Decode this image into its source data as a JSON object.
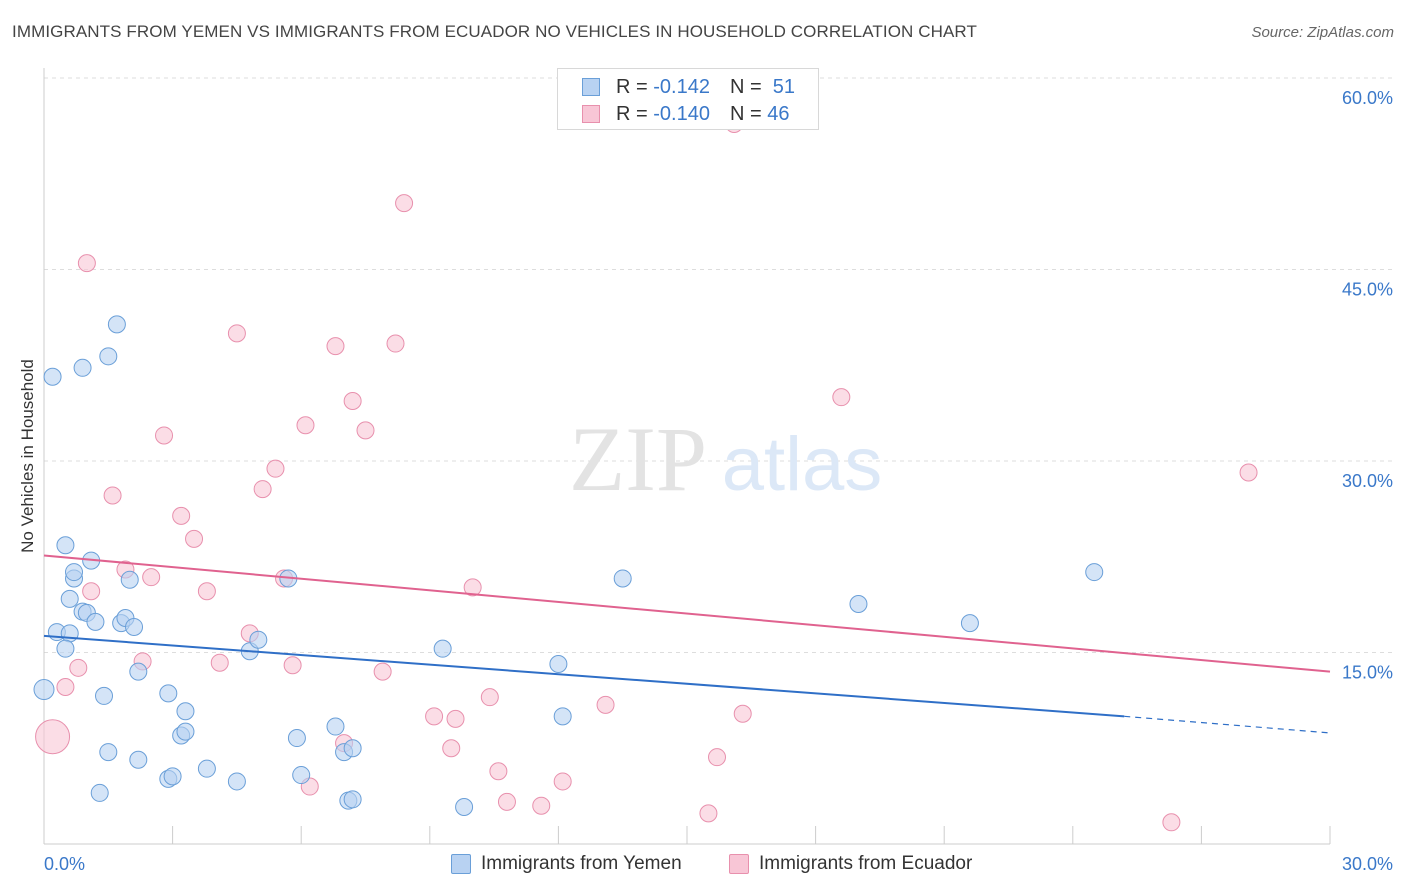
{
  "title": "IMMIGRANTS FROM YEMEN VS IMMIGRANTS FROM ECUADOR NO VEHICLES IN HOUSEHOLD CORRELATION CHART",
  "source": "Source: ZipAtlas.com",
  "watermark": {
    "zip": "ZIP",
    "atlas": "atlas"
  },
  "legend_top": [
    {
      "r_label": "R =",
      "r_value": "-0.142",
      "n_label": "N =",
      "n_value": "51"
    },
    {
      "r_label": "R =",
      "r_value": "-0.140",
      "n_label": "N =",
      "n_value": "46"
    }
  ],
  "colors": {
    "yemen_fill": "#b8d2f2",
    "yemen_stroke": "#6a9fd8",
    "yemen_line": "#2f6fc7",
    "ecuador_fill": "#f8c6d6",
    "ecuador_stroke": "#e890ad",
    "ecuador_line": "#e0628f",
    "tick_label": "#3a78c9",
    "grid": "#dddddd"
  },
  "chart_data": {
    "type": "scatter",
    "title": "IMMIGRANTS FROM YEMEN VS IMMIGRANTS FROM ECUADOR NO VEHICLES IN HOUSEHOLD CORRELATION CHART",
    "xlabel": "",
    "ylabel": "No Vehicles in Household",
    "xlim": [
      0,
      30
    ],
    "ylim": [
      0,
      60
    ],
    "x_tick_labels": [
      "0.0%",
      "30.0%"
    ],
    "y_ticks": [
      {
        "value": 15,
        "label": "15.0%"
      },
      {
        "value": 30,
        "label": "30.0%"
      },
      {
        "value": 45,
        "label": "45.0%"
      },
      {
        "value": 60,
        "label": "60.0%"
      }
    ],
    "grid": true,
    "legend_placement": "top-center",
    "series": [
      {
        "name": "Immigrants from Yemen",
        "trend": {
          "x0": 0,
          "y0": 16.3,
          "x1": 25.2,
          "y1": 10.0,
          "dashed_to_x": 30,
          "dashed_to_y": 8.7
        },
        "points": [
          [
            0.2,
            36.6
          ],
          [
            0.3,
            16.6
          ],
          [
            0.5,
            23.4
          ],
          [
            0.6,
            16.5
          ],
          [
            0.5,
            15.3
          ],
          [
            0.6,
            19.2
          ],
          [
            0.7,
            20.8
          ],
          [
            0.7,
            21.3
          ],
          [
            0.0,
            12.1
          ],
          [
            0.9,
            18.2
          ],
          [
            1.0,
            18.1
          ],
          [
            0.9,
            37.3
          ],
          [
            1.1,
            22.2
          ],
          [
            1.2,
            17.4
          ],
          [
            1.4,
            11.6
          ],
          [
            1.5,
            7.2
          ],
          [
            1.3,
            4.0
          ],
          [
            1.5,
            38.2
          ],
          [
            1.7,
            40.7
          ],
          [
            1.8,
            17.3
          ],
          [
            1.9,
            17.7
          ],
          [
            2.0,
            20.7
          ],
          [
            2.1,
            17.0
          ],
          [
            2.2,
            13.5
          ],
          [
            2.2,
            6.6
          ],
          [
            2.9,
            11.8
          ],
          [
            2.9,
            5.1
          ],
          [
            3.0,
            5.3
          ],
          [
            3.2,
            8.5
          ],
          [
            3.3,
            10.4
          ],
          [
            3.3,
            8.8
          ],
          [
            3.8,
            5.9
          ],
          [
            4.5,
            4.9
          ],
          [
            4.8,
            15.1
          ],
          [
            5.0,
            16.0
          ],
          [
            5.7,
            20.8
          ],
          [
            5.9,
            8.3
          ],
          [
            6.0,
            5.4
          ],
          [
            6.8,
            9.2
          ],
          [
            7.0,
            7.2
          ],
          [
            7.2,
            7.5
          ],
          [
            7.1,
            3.4
          ],
          [
            9.3,
            15.3
          ],
          [
            9.8,
            2.9
          ],
          [
            12.0,
            14.1
          ],
          [
            12.1,
            10.0
          ],
          [
            13.5,
            20.8
          ],
          [
            19.0,
            18.8
          ],
          [
            21.6,
            17.3
          ],
          [
            24.5,
            21.3
          ],
          [
            7.2,
            3.5
          ]
        ]
      },
      {
        "name": "Immigrants from Ecuador",
        "trend": {
          "x0": 0,
          "y0": 22.6,
          "x1": 30,
          "y1": 13.5
        },
        "points": [
          [
            0.2,
            8.4
          ],
          [
            0.5,
            12.3
          ],
          [
            0.8,
            13.8
          ],
          [
            1.0,
            45.5
          ],
          [
            1.1,
            19.8
          ],
          [
            1.6,
            27.3
          ],
          [
            1.9,
            21.5
          ],
          [
            2.3,
            14.3
          ],
          [
            2.5,
            20.9
          ],
          [
            2.8,
            32.0
          ],
          [
            3.2,
            25.7
          ],
          [
            3.5,
            23.9
          ],
          [
            3.8,
            19.8
          ],
          [
            4.1,
            14.2
          ],
          [
            4.5,
            40.0
          ],
          [
            4.8,
            16.5
          ],
          [
            5.1,
            27.8
          ],
          [
            5.4,
            29.4
          ],
          [
            5.6,
            20.8
          ],
          [
            5.8,
            14.0
          ],
          [
            6.2,
            4.5
          ],
          [
            6.1,
            32.8
          ],
          [
            6.8,
            39.0
          ],
          [
            7.0,
            7.9
          ],
          [
            7.2,
            34.7
          ],
          [
            7.5,
            32.4
          ],
          [
            7.9,
            13.5
          ],
          [
            8.2,
            39.2
          ],
          [
            8.4,
            50.2
          ],
          [
            9.1,
            10.0
          ],
          [
            9.5,
            7.5
          ],
          [
            9.6,
            9.8
          ],
          [
            10.0,
            20.1
          ],
          [
            10.4,
            11.5
          ],
          [
            10.6,
            5.7
          ],
          [
            10.8,
            3.3
          ],
          [
            11.6,
            3.0
          ],
          [
            12.1,
            4.9
          ],
          [
            13.1,
            10.9
          ],
          [
            15.5,
            2.4
          ],
          [
            15.7,
            6.8
          ],
          [
            16.1,
            56.4
          ],
          [
            16.3,
            10.2
          ],
          [
            18.6,
            35.0
          ],
          [
            26.3,
            1.7
          ],
          [
            28.1,
            29.1
          ]
        ]
      }
    ]
  }
}
